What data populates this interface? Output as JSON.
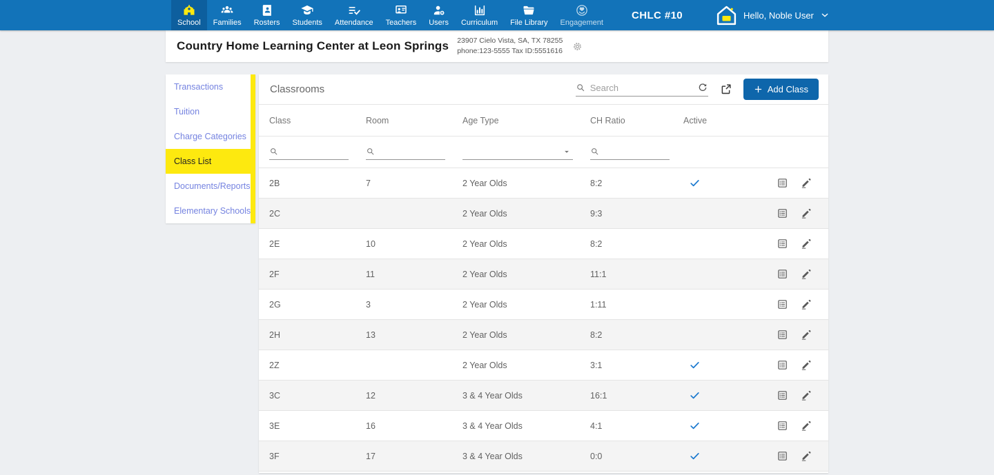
{
  "topnav": {
    "items": [
      {
        "label": "School",
        "icon": "school",
        "active": true
      },
      {
        "label": "Families",
        "icon": "families",
        "active": false
      },
      {
        "label": "Rosters",
        "icon": "rosters",
        "active": false
      },
      {
        "label": "Students",
        "icon": "students",
        "active": false
      },
      {
        "label": "Attendance",
        "icon": "attendance",
        "active": false
      },
      {
        "label": "Teachers",
        "icon": "teachers",
        "active": false
      },
      {
        "label": "Users",
        "icon": "users",
        "active": false
      },
      {
        "label": "Curriculum",
        "icon": "curriculum",
        "active": false
      },
      {
        "label": "File Library",
        "icon": "file-library",
        "active": false
      },
      {
        "label": "Engagement",
        "icon": "engagement",
        "active": false,
        "dimmed": true
      }
    ],
    "center_label": "CHLC #10",
    "user": {
      "greeting": "Hello, Noble User",
      "avatar_icon": "house-logo"
    }
  },
  "school_header": {
    "name": "Country Home Learning Center at Leon Springs",
    "address_line1": "23907 Cielo Vista, SA, TX 78255",
    "address_line2": "phone:123-5555 Tax ID:5551616",
    "settings_icon": "gear"
  },
  "sidebar": {
    "items": [
      {
        "label": "Transactions",
        "active": false
      },
      {
        "label": "Tuition",
        "active": false
      },
      {
        "label": "Charge Categories",
        "active": false
      },
      {
        "label": "Class List",
        "active": true
      },
      {
        "label": "Documents/Reports",
        "active": false
      },
      {
        "label": "Elementary Schools",
        "active": false
      }
    ]
  },
  "main": {
    "title": "Classrooms",
    "search": {
      "placeholder": "Search",
      "icon": "search"
    },
    "toolbar_icons": [
      "refresh",
      "export"
    ],
    "add_class_button": {
      "label": "Add Class",
      "icon": "plus"
    },
    "table": {
      "columns": [
        "Class",
        "Room",
        "Age Type",
        "CH Ratio",
        "Active"
      ],
      "filter_icons": {
        "class": "search",
        "room": "search",
        "age_type": "caret-down",
        "ch_ratio": "search"
      },
      "row_action_icons": [
        "list-alt",
        "edit"
      ],
      "rows": [
        {
          "class": "2B",
          "room": "7",
          "age_type": "2 Year Olds",
          "ch_ratio": "8:2",
          "active": true
        },
        {
          "class": "2C",
          "room": "",
          "age_type": "2 Year Olds",
          "ch_ratio": "9:3",
          "active": false
        },
        {
          "class": "2E",
          "room": "10",
          "age_type": "2 Year Olds",
          "ch_ratio": "8:2",
          "active": false
        },
        {
          "class": "2F",
          "room": "11",
          "age_type": "2 Year Olds",
          "ch_ratio": "11:1",
          "active": false
        },
        {
          "class": "2G",
          "room": "3",
          "age_type": "2 Year Olds",
          "ch_ratio": "1:11",
          "active": false
        },
        {
          "class": "2H",
          "room": "13",
          "age_type": "2 Year Olds",
          "ch_ratio": "8:2",
          "active": false
        },
        {
          "class": "2Z",
          "room": "",
          "age_type": "2 Year Olds",
          "ch_ratio": "3:1",
          "active": true
        },
        {
          "class": "3C",
          "room": "12",
          "age_type": "3 & 4 Year Olds",
          "ch_ratio": "16:1",
          "active": true
        },
        {
          "class": "3E",
          "room": "16",
          "age_type": "3 & 4 Year Olds",
          "ch_ratio": "4:1",
          "active": true
        },
        {
          "class": "3F",
          "room": "17",
          "age_type": "3 & 4 Year Olds",
          "ch_ratio": "0:0",
          "active": true
        }
      ]
    }
  },
  "colors": {
    "bar_blue": "#1273b9",
    "bar_blue_dark": "#0d5f9e",
    "yellow": "#fde90f",
    "link_blue": "#7583e0",
    "button_blue": "#0e66ab",
    "check_blue": "#1b79cf",
    "page_bg": "#edeff2"
  }
}
